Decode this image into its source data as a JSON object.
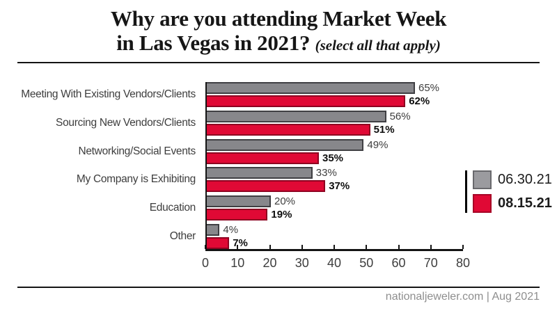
{
  "title": {
    "line1": "Why are you attending Market Week",
    "line2": "in Las Vegas in 2021?",
    "subtitle": "(select all that apply)"
  },
  "footer": {
    "text": "nationaljeweler.com | Aug 2021"
  },
  "colors": {
    "series_gray": "#87878B",
    "series_red": "#E00935",
    "axis": "#141414",
    "label_text": "#3d3d3d",
    "footer_text": "#8E8E8E"
  },
  "chart_data": {
    "type": "bar",
    "orientation": "horizontal",
    "title": "Why are you attending Market Week in Las Vegas in 2021? (select all that apply)",
    "categories": [
      "Meeting With Existing Vendors/Clients",
      "Sourcing New Vendors/Clients",
      "Networking/Social Events",
      "My Company is Exhibiting",
      "Education",
      "Other"
    ],
    "series": [
      {
        "name": "06.30.21",
        "color": "#87878B",
        "values": [
          65,
          56,
          49,
          33,
          20,
          4
        ]
      },
      {
        "name": "08.15.21",
        "color": "#E00935",
        "values": [
          62,
          51,
          35,
          37,
          19,
          7
        ]
      }
    ],
    "value_suffix": "%",
    "xlabel": "",
    "ylabel": "",
    "xlim": [
      0,
      80
    ],
    "x_ticks": [
      0,
      10,
      20,
      30,
      40,
      50,
      60,
      70,
      80
    ],
    "grid": false,
    "legend_position": "right"
  }
}
